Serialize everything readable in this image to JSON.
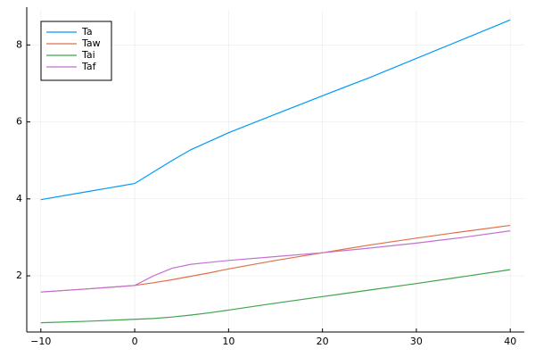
{
  "chart_data": {
    "type": "line",
    "x": [
      -10,
      -5,
      0,
      2,
      4,
      6,
      8,
      10,
      15,
      20,
      25,
      30,
      35,
      40
    ],
    "series": [
      {
        "name": "Ta",
        "color": "#009af9",
        "values": [
          3.98,
          4.19,
          4.4,
          4.7,
          5.0,
          5.28,
          5.5,
          5.72,
          6.2,
          6.68,
          7.15,
          7.65,
          8.15,
          8.65
        ]
      },
      {
        "name": "Taw",
        "color": "#e26f46",
        "values": [
          1.58,
          1.66,
          1.75,
          1.82,
          1.9,
          1.99,
          2.08,
          2.18,
          2.4,
          2.6,
          2.8,
          2.98,
          3.15,
          3.31
        ]
      },
      {
        "name": "Tai",
        "color": "#3ea44e",
        "values": [
          0.78,
          0.82,
          0.87,
          0.89,
          0.93,
          0.98,
          1.04,
          1.11,
          1.29,
          1.46,
          1.63,
          1.8,
          1.98,
          2.16
        ]
      },
      {
        "name": "Taf",
        "color": "#c271d2",
        "values": [
          1.58,
          1.66,
          1.75,
          2.0,
          2.2,
          2.3,
          2.35,
          2.4,
          2.5,
          2.6,
          2.72,
          2.85,
          3.0,
          3.17
        ]
      }
    ],
    "xlim": [
      -11.5,
      41.5
    ],
    "xticks": [
      {
        "value": -10,
        "label": "−10"
      },
      0,
      10,
      20,
      30,
      40
    ],
    "ylim": [
      0.54,
      8.89
    ],
    "yticks": [
      2,
      4,
      6,
      8
    ],
    "grid": true,
    "legend": "top-left"
  }
}
